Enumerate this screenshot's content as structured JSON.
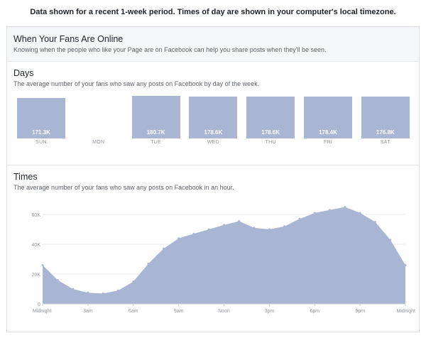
{
  "top_note": "Data shown for a recent 1-week period. Times of day are shown in your computer's local timezone.",
  "section": {
    "title": "When Your Fans Are Online",
    "subtitle": "Knowing when the people who like your Page are on Facebook can help you share posts when they'll be seen."
  },
  "days_block": {
    "title": "Days",
    "subtitle": "The average number of your fans who saw any posts on Facebook by day of the week."
  },
  "times_block": {
    "title": "Times",
    "subtitle": "The average number of your fans who saw any posts on Facebook in an hour."
  },
  "colors": {
    "fill": "#a8b6d4",
    "grid": "#e9ebee",
    "tick": "#90949c"
  },
  "chart_data": [
    {
      "type": "bar",
      "title": "Days",
      "categories": [
        "SUN",
        "MON",
        "TUE",
        "WED",
        "THU",
        "FRI",
        "SAT"
      ],
      "values": [
        171300,
        null,
        180700,
        178600,
        178600,
        178400,
        176800
      ],
      "value_labels": [
        "171.3K",
        "",
        "180.7K",
        "178.6K",
        "178.6K",
        "178.4K",
        "176.8K"
      ],
      "ylim": [
        0,
        180700
      ]
    },
    {
      "type": "area",
      "title": "Times",
      "xlabel": "",
      "ylabel": "",
      "x": [
        0,
        1,
        2,
        3,
        4,
        5,
        6,
        7,
        8,
        9,
        10,
        11,
        12,
        13,
        14,
        15,
        16,
        17,
        18,
        19,
        20,
        21,
        22,
        23,
        24
      ],
      "values": [
        26000,
        16000,
        10000,
        7500,
        7000,
        9000,
        15000,
        27000,
        37000,
        44000,
        47000,
        50000,
        53000,
        55500,
        51000,
        50000,
        52000,
        57000,
        61000,
        63000,
        65000,
        61000,
        55000,
        43000,
        26000
      ],
      "x_tick_positions": [
        0,
        3,
        6,
        9,
        12,
        15,
        18,
        21,
        24
      ],
      "x_tick_labels": [
        "Midnight",
        "3am",
        "6am",
        "9am",
        "Noon",
        "3pm",
        "6pm",
        "9pm",
        "Midnight"
      ],
      "y_ticks": [
        0,
        20000,
        40000,
        60000
      ],
      "y_tick_labels": [
        "0",
        "20K",
        "40K",
        "60K"
      ],
      "ylim": [
        0,
        70000
      ],
      "grid": true
    }
  ]
}
